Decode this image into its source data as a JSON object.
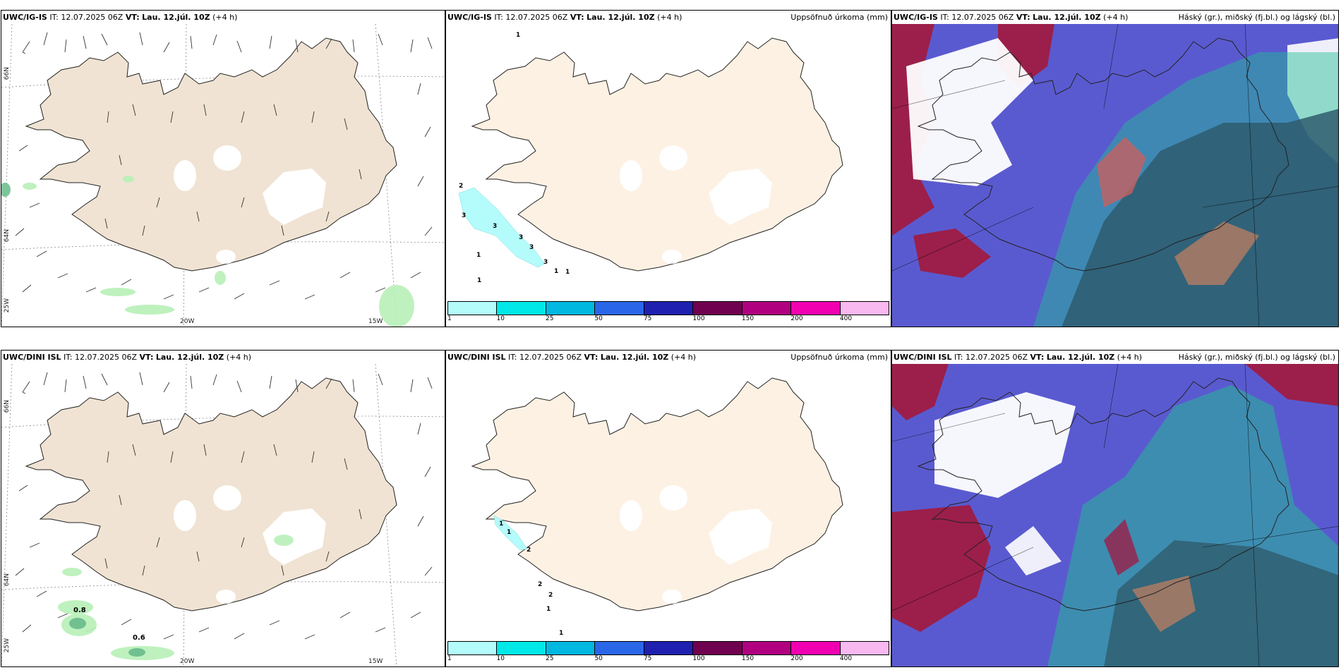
{
  "rows": [
    {
      "model": "UWC/IG-IS",
      "it_label": "IT:",
      "it_value": "12.07.2025 06Z",
      "vt_label": "VT:",
      "vt_value": "Lau. 12.júl. 10Z",
      "lead": "(+4 h)",
      "precip_title": "Uppsöfnuð úrkoma (mm)",
      "cloud_title": "Háský (gr.), miðský (fj.bl.) og lágský (bl.)",
      "precip_labels": [
        "1",
        "2",
        "3",
        "3",
        "3",
        "3",
        "3",
        "1",
        "1",
        "1",
        "1"
      ],
      "wind_contour_labels": []
    },
    {
      "model": "UWC/DINI ISL",
      "it_label": "IT:",
      "it_value": "12.07.2025 06Z",
      "vt_label": "VT:",
      "vt_value": "Lau. 12.júl. 10Z",
      "lead": "(+4 h)",
      "precip_title": "Uppsöfnuð úrkoma (mm)",
      "cloud_title": "Háský (gr.), miðský (fj.bl.) og lágský (bl.)",
      "precip_labels": [
        "1",
        "1",
        "2",
        "2",
        "2",
        "1",
        "1"
      ],
      "wind_contour_labels": [
        "0.8",
        "0.6"
      ]
    }
  ],
  "grid_labels": {
    "lat_66": "66N",
    "lat_64": "64N",
    "lon_25": "25W",
    "lon_20": "20W",
    "lon_15": "15W"
  },
  "legend": {
    "ticks": [
      "1",
      "10",
      "25",
      "50",
      "75",
      "100",
      "150",
      "200",
      "400"
    ],
    "colors": [
      "#b4fbfb",
      "#00e8e8",
      "#00b8e0",
      "#2a66e8",
      "#2020b0",
      "#700050",
      "#b00080",
      "#f000b0",
      "#f8b8f0"
    ]
  },
  "colors": {
    "land": "#f0e3d3",
    "land_precip": "#fdf1e3",
    "low_cloud": "#5a5ad0",
    "mid_cloud": "#9b1f4a",
    "high_cloud": "#20c090",
    "sea_cloud": "#2e5c6e"
  }
}
